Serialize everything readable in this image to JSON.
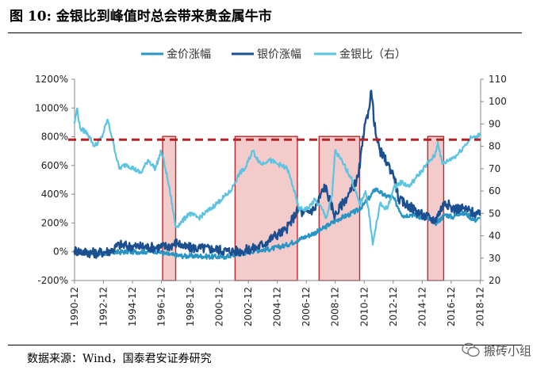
{
  "figure": {
    "title": "图 10:  金银比到峰值时总会带来贵金属牛市",
    "source": "数据来源：Wind，国泰君安证券研究",
    "watermark": "搬砖小组"
  },
  "chart_data": {
    "type": "line",
    "title": "金银比到峰值时总会带来贵金属牛市",
    "legend": {
      "position": "top",
      "entries": [
        "金价涨幅",
        "银价涨幅",
        "金银比（右）"
      ]
    },
    "x_ticks": [
      "1990-12",
      "1992-12",
      "1994-12",
      "1996-12",
      "1998-12",
      "2000-12",
      "2002-12",
      "2004-12",
      "2006-12",
      "2008-12",
      "2010-12",
      "2012-12",
      "2014-12",
      "2016-12",
      "2018-12"
    ],
    "x_range": [
      1990.92,
      2018.95
    ],
    "y_left": {
      "range": [
        -200,
        1200
      ],
      "ticks": [
        "-200%",
        "0%",
        "200%",
        "400%",
        "600%",
        "800%",
        "1000%",
        "1200%"
      ],
      "tick_values": [
        -200,
        0,
        200,
        400,
        600,
        800,
        1000,
        1200
      ]
    },
    "y_right": {
      "range": [
        20,
        110
      ],
      "ticks": [
        "20",
        "30",
        "40",
        "50",
        "60",
        "70",
        "80",
        "90",
        "100",
        "110"
      ],
      "tick_values": [
        20,
        30,
        40,
        50,
        60,
        70,
        80,
        90,
        100,
        110
      ]
    },
    "series": [
      {
        "name": "金价涨幅",
        "axis": "left",
        "color": "#2a95c5",
        "x": [
          1990.9,
          1991.5,
          1992.5,
          1993.5,
          1994.5,
          1995.5,
          1996.5,
          1997.2,
          1997.8,
          1998.5,
          1999.5,
          2000.5,
          2001.3,
          2002.5,
          2003.5,
          2004.5,
          2005.5,
          2006.3,
          2007.0,
          2007.9,
          2008.5,
          2009.2,
          2009.9,
          2010.5,
          2010.9,
          2011.3,
          2011.7,
          2012.3,
          2012.9,
          2013.3,
          2013.6,
          2014.2,
          2014.9,
          2015.5,
          2015.9,
          2016.5,
          2017.0,
          2017.5,
          2018.0,
          2018.5,
          2018.9
        ],
        "y": [
          0,
          -5,
          -15,
          -5,
          0,
          0,
          5,
          -15,
          -25,
          -30,
          -30,
          -35,
          -35,
          -10,
          10,
          20,
          45,
          80,
          110,
          150,
          190,
          230,
          260,
          290,
          330,
          380,
          440,
          390,
          380,
          300,
          250,
          260,
          240,
          220,
          200,
          260,
          240,
          270,
          260,
          220,
          230
        ]
      },
      {
        "name": "银价涨幅",
        "axis": "left",
        "color": "#1b4f8f",
        "x": [
          1990.9,
          1991.5,
          1992.5,
          1993.5,
          1994.0,
          1994.5,
          1995.5,
          1996.5,
          1997.5,
          1998.0,
          1998.5,
          1999.5,
          2000.5,
          2001.5,
          2002.5,
          2003.5,
          2004.2,
          2004.7,
          2005.5,
          2006.4,
          2006.7,
          2007.5,
          2008.2,
          2008.9,
          2009.5,
          2010.0,
          2010.5,
          2010.9,
          2011.2,
          2011.4,
          2011.7,
          2012.0,
          2012.5,
          2013.0,
          2013.3,
          2014.0,
          2015.0,
          2015.8,
          2016.5,
          2017.0,
          2017.8,
          2018.5,
          2018.9
        ],
        "y": [
          10,
          0,
          -10,
          10,
          50,
          40,
          35,
          30,
          40,
          65,
          30,
          25,
          20,
          5,
          5,
          30,
          70,
          110,
          150,
          300,
          260,
          300,
          460,
          250,
          350,
          420,
          520,
          830,
          980,
          1120,
          820,
          700,
          620,
          520,
          360,
          320,
          250,
          220,
          350,
          300,
          300,
          270,
          250
        ]
      },
      {
        "name": "金银比（右）",
        "axis": "right",
        "color": "#5cc3e0",
        "x": [
          1990.9,
          1991.1,
          1991.3,
          1991.8,
          1992.3,
          1992.8,
          1993.2,
          1993.5,
          1994.0,
          1994.5,
          1995.0,
          1995.5,
          1996.0,
          1996.5,
          1996.9,
          1997.2,
          1997.5,
          1997.9,
          1998.3,
          1998.8,
          1999.5,
          2000.3,
          2001.0,
          2001.7,
          2002.0,
          2002.3,
          2002.7,
          2003.2,
          2003.8,
          2004.3,
          2005.0,
          2005.6,
          2006.0,
          2006.4,
          2007.0,
          2007.5,
          2008.0,
          2008.3,
          2008.7,
          2008.9,
          2009.5,
          2010.0,
          2010.6,
          2011.0,
          2011.3,
          2011.5,
          2012.0,
          2012.5,
          2013.0,
          2013.5,
          2014.0,
          2014.5,
          2015.0,
          2015.5,
          2015.8,
          2016.0,
          2016.3,
          2016.8,
          2017.3,
          2017.8,
          2018.3,
          2018.7,
          2018.9
        ],
        "y": [
          90,
          97,
          88,
          86,
          80,
          84,
          92,
          84,
          70,
          72,
          70,
          68,
          74,
          70,
          78,
          70,
          60,
          44,
          46,
          50,
          48,
          52,
          56,
          60,
          64,
          68,
          70,
          78,
          72,
          74,
          72,
          70,
          62,
          52,
          52,
          56,
          52,
          48,
          58,
          78,
          72,
          66,
          54,
          60,
          48,
          36,
          54,
          52,
          62,
          64,
          62,
          66,
          70,
          74,
          76,
          82,
          72,
          74,
          76,
          80,
          84,
          84,
          86
        ]
      }
    ],
    "reference_line": {
      "axis": "left",
      "value": 780,
      "style": "dashed",
      "color": "#b22222"
    },
    "highlight_periods": [
      {
        "start": 1997.0,
        "end": 1997.9
      },
      {
        "start": 2002.0,
        "end": 2006.3
      },
      {
        "start": 2007.8,
        "end": 2010.6
      },
      {
        "start": 2015.3,
        "end": 2016.4
      }
    ]
  }
}
